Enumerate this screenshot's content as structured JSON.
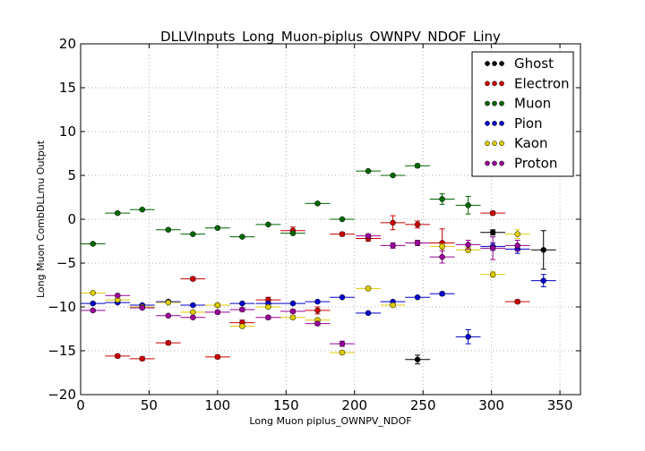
{
  "chart_data": {
    "type": "scatter",
    "title": "DLLVInputs_Long_Muon-piplus_OWNPV_NDOF_Liny",
    "xlabel": "Long Muon piplus_OWNPV_NDOF",
    "ylabel": "Long Muon CombDLLmu Output",
    "xlim": [
      0,
      365
    ],
    "ylim": [
      -20,
      20
    ],
    "xticks": [
      0,
      50,
      100,
      150,
      200,
      250,
      300,
      350
    ],
    "yticks": [
      -20,
      -15,
      -10,
      -5,
      0,
      5,
      10,
      15,
      20
    ],
    "grid": true,
    "legend_position": "upper right",
    "bin_halfwidth": 9.1,
    "series": [
      {
        "name": "Ghost",
        "color": "#000000",
        "x": [
          246,
          301,
          338
        ],
        "y": [
          -16.0,
          -1.5,
          -3.5
        ],
        "yerr": [
          0.5,
          0.3,
          2.2
        ]
      },
      {
        "name": "Electron",
        "color": "#cc0000",
        "x": [
          27,
          45,
          64,
          82,
          100,
          118,
          137,
          155,
          173,
          191,
          210,
          228,
          246,
          264,
          301,
          319
        ],
        "y": [
          -15.6,
          -15.9,
          -14.1,
          -6.8,
          -15.7,
          -11.8,
          -9.2,
          -1.3,
          -10.4,
          -1.7,
          -2.2,
          -0.4,
          -0.6,
          -2.7,
          0.7,
          -9.4
        ],
        "yerr": [
          0.2,
          0.2,
          0.2,
          0.2,
          0.2,
          0.3,
          0.3,
          0.4,
          0.4,
          0.2,
          0.3,
          0.8,
          0.4,
          1.6,
          0.2,
          0.2
        ]
      },
      {
        "name": "Muon",
        "color": "#006600",
        "x": [
          9,
          27,
          45,
          64,
          82,
          100,
          118,
          137,
          155,
          173,
          191,
          210,
          228,
          246,
          264,
          283
        ],
        "y": [
          -2.8,
          0.7,
          1.1,
          -1.2,
          -1.7,
          -1.0,
          -2.0,
          -0.6,
          -1.6,
          1.8,
          0.0,
          5.5,
          5.0,
          6.1,
          2.3,
          1.6
        ],
        "yerr": [
          0.1,
          0.1,
          0.1,
          0.1,
          0.1,
          0.1,
          0.1,
          0.1,
          0.1,
          0.1,
          0.1,
          0.1,
          0.1,
          0.2,
          0.6,
          1.0
        ]
      },
      {
        "name": "Pion",
        "color": "#0000cc",
        "x": [
          9,
          27,
          45,
          64,
          82,
          100,
          118,
          137,
          155,
          173,
          191,
          210,
          228,
          246,
          264,
          283,
          301,
          319,
          338
        ],
        "y": [
          -9.6,
          -9.5,
          -9.8,
          -9.4,
          -9.8,
          -9.8,
          -9.6,
          -9.6,
          -9.6,
          -9.4,
          -8.9,
          -10.7,
          -9.4,
          -8.9,
          -8.5,
          -13.4,
          -3.1,
          -3.4,
          -7.0
        ],
        "yerr": [
          0.1,
          0.1,
          0.1,
          0.1,
          0.1,
          0.1,
          0.1,
          0.1,
          0.1,
          0.1,
          0.1,
          0.1,
          0.1,
          0.1,
          0.2,
          0.8,
          0.4,
          0.5,
          0.7
        ]
      },
      {
        "name": "Kaon",
        "color": "#ddcc00",
        "x": [
          9,
          27,
          45,
          64,
          82,
          100,
          118,
          137,
          155,
          173,
          191,
          210,
          228,
          246,
          264,
          283,
          301,
          319
        ],
        "y": [
          -8.4,
          -9.2,
          -10.0,
          -9.5,
          -10.6,
          -9.8,
          -12.2,
          -10.0,
          -11.2,
          -11.5,
          -15.2,
          -7.9,
          -9.8,
          -2.7,
          -3.1,
          -3.5,
          -6.3,
          -1.7
        ],
        "yerr": [
          0.1,
          0.1,
          0.1,
          0.1,
          0.1,
          0.2,
          0.2,
          0.2,
          0.2,
          0.2,
          0.2,
          0.2,
          0.2,
          0.2,
          0.3,
          0.3,
          0.3,
          0.5
        ]
      },
      {
        "name": "Proton",
        "color": "#990099",
        "x": [
          9,
          27,
          45,
          64,
          82,
          100,
          118,
          137,
          155,
          173,
          191,
          210,
          228,
          246,
          264,
          283,
          301,
          319
        ],
        "y": [
          -10.4,
          -8.7,
          -10.1,
          -11.0,
          -11.2,
          -10.6,
          -10.3,
          -11.2,
          -10.5,
          -11.9,
          -14.2,
          -1.9,
          -3.0,
          -2.7,
          -4.3,
          -2.9,
          -3.3,
          -3.0
        ],
        "yerr": [
          0.1,
          0.1,
          0.1,
          0.1,
          0.1,
          0.2,
          0.2,
          0.2,
          0.2,
          0.2,
          0.3,
          0.2,
          0.3,
          0.3,
          0.7,
          0.5,
          1.3,
          0.6
        ]
      }
    ]
  }
}
